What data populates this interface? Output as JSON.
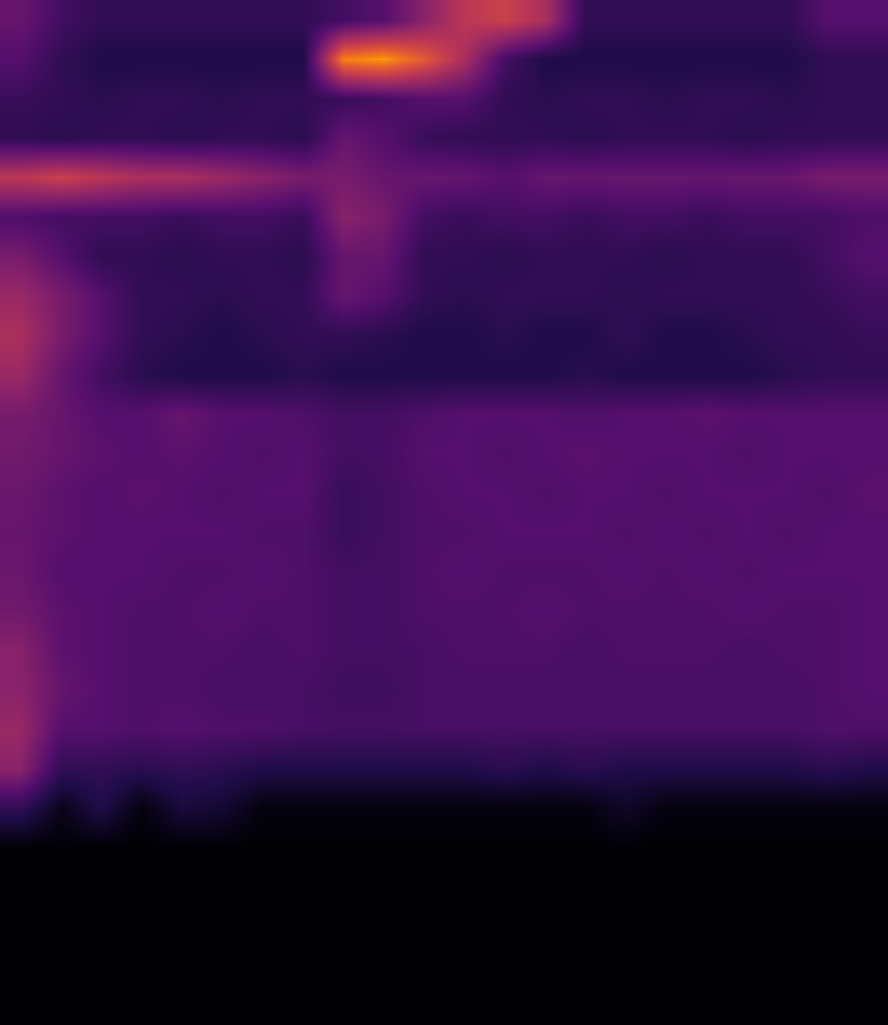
{
  "chart_data": {
    "type": "heatmap",
    "tick_labels": false,
    "grid": false,
    "xlim": [
      0,
      22
    ],
    "ylim": [
      26,
      0
    ],
    "zlim": [
      0,
      1
    ],
    "z": [
      [
        0.35,
        0.25,
        0.2,
        0.2,
        0.2,
        0.2,
        0.2,
        0.2,
        0.25,
        0.3,
        0.45,
        0.6,
        0.65,
        0.55,
        0.2,
        0.2,
        0.2,
        0.2,
        0.2,
        0.2,
        0.3,
        0.3
      ],
      [
        0.3,
        0.2,
        0.15,
        0.15,
        0.15,
        0.15,
        0.15,
        0.15,
        0.85,
        0.9,
        0.75,
        0.55,
        0.25,
        0.15,
        0.15,
        0.15,
        0.15,
        0.15,
        0.15,
        0.15,
        0.2,
        0.2
      ],
      [
        0.22,
        0.2,
        0.18,
        0.2,
        0.2,
        0.18,
        0.2,
        0.2,
        0.22,
        0.25,
        0.3,
        0.3,
        0.2,
        0.18,
        0.2,
        0.2,
        0.18,
        0.2,
        0.2,
        0.18,
        0.2,
        0.2
      ],
      [
        0.2,
        0.18,
        0.2,
        0.2,
        0.18,
        0.2,
        0.2,
        0.18,
        0.35,
        0.3,
        0.22,
        0.2,
        0.2,
        0.2,
        0.18,
        0.2,
        0.2,
        0.2,
        0.18,
        0.2,
        0.2,
        0.2
      ],
      [
        0.6,
        0.65,
        0.6,
        0.55,
        0.55,
        0.5,
        0.45,
        0.4,
        0.4,
        0.35,
        0.35,
        0.35,
        0.3,
        0.35,
        0.35,
        0.35,
        0.35,
        0.35,
        0.35,
        0.35,
        0.4,
        0.4
      ],
      [
        0.28,
        0.25,
        0.25,
        0.25,
        0.22,
        0.25,
        0.25,
        0.22,
        0.45,
        0.4,
        0.25,
        0.22,
        0.25,
        0.25,
        0.22,
        0.25,
        0.25,
        0.22,
        0.25,
        0.25,
        0.25,
        0.28
      ],
      [
        0.4,
        0.3,
        0.2,
        0.2,
        0.18,
        0.2,
        0.2,
        0.18,
        0.35,
        0.35,
        0.2,
        0.2,
        0.18,
        0.2,
        0.2,
        0.2,
        0.18,
        0.2,
        0.2,
        0.2,
        0.25,
        0.3
      ],
      [
        0.5,
        0.4,
        0.3,
        0.2,
        0.2,
        0.18,
        0.2,
        0.2,
        0.35,
        0.3,
        0.2,
        0.18,
        0.2,
        0.2,
        0.2,
        0.18,
        0.2,
        0.2,
        0.2,
        0.2,
        0.22,
        0.25
      ],
      [
        0.55,
        0.4,
        0.3,
        0.2,
        0.18,
        0.15,
        0.18,
        0.2,
        0.2,
        0.18,
        0.15,
        0.15,
        0.18,
        0.15,
        0.15,
        0.2,
        0.15,
        0.15,
        0.18,
        0.2,
        0.2,
        0.22
      ],
      [
        0.5,
        0.35,
        0.25,
        0.18,
        0.15,
        0.15,
        0.15,
        0.18,
        0.15,
        0.15,
        0.15,
        0.15,
        0.15,
        0.15,
        0.18,
        0.15,
        0.15,
        0.15,
        0.15,
        0.18,
        0.2,
        0.2
      ],
      [
        0.4,
        0.35,
        0.3,
        0.3,
        0.35,
        0.3,
        0.3,
        0.28,
        0.25,
        0.25,
        0.28,
        0.3,
        0.3,
        0.3,
        0.28,
        0.3,
        0.3,
        0.32,
        0.3,
        0.3,
        0.3,
        0.3
      ],
      [
        0.38,
        0.35,
        0.32,
        0.3,
        0.32,
        0.3,
        0.28,
        0.3,
        0.25,
        0.25,
        0.3,
        0.3,
        0.28,
        0.3,
        0.32,
        0.3,
        0.3,
        0.3,
        0.28,
        0.3,
        0.3,
        0.3
      ],
      [
        0.36,
        0.32,
        0.3,
        0.32,
        0.3,
        0.28,
        0.3,
        0.3,
        0.22,
        0.25,
        0.28,
        0.3,
        0.3,
        0.28,
        0.3,
        0.3,
        0.28,
        0.3,
        0.3,
        0.3,
        0.28,
        0.32
      ],
      [
        0.35,
        0.32,
        0.3,
        0.3,
        0.3,
        0.3,
        0.28,
        0.28,
        0.22,
        0.25,
        0.28,
        0.28,
        0.3,
        0.3,
        0.3,
        0.28,
        0.3,
        0.28,
        0.3,
        0.28,
        0.3,
        0.3
      ],
      [
        0.36,
        0.3,
        0.3,
        0.3,
        0.28,
        0.28,
        0.3,
        0.28,
        0.25,
        0.25,
        0.28,
        0.3,
        0.28,
        0.28,
        0.28,
        0.3,
        0.28,
        0.3,
        0.28,
        0.3,
        0.3,
        0.3
      ],
      [
        0.38,
        0.32,
        0.3,
        0.28,
        0.28,
        0.3,
        0.28,
        0.28,
        0.25,
        0.25,
        0.28,
        0.28,
        0.28,
        0.3,
        0.28,
        0.28,
        0.28,
        0.28,
        0.3,
        0.28,
        0.28,
        0.3
      ],
      [
        0.45,
        0.32,
        0.3,
        0.28,
        0.28,
        0.28,
        0.26,
        0.28,
        0.25,
        0.25,
        0.26,
        0.28,
        0.28,
        0.28,
        0.26,
        0.28,
        0.28,
        0.28,
        0.26,
        0.28,
        0.28,
        0.3
      ],
      [
        0.45,
        0.35,
        0.3,
        0.28,
        0.28,
        0.26,
        0.26,
        0.26,
        0.24,
        0.24,
        0.26,
        0.26,
        0.26,
        0.26,
        0.26,
        0.26,
        0.26,
        0.26,
        0.26,
        0.26,
        0.28,
        0.3
      ],
      [
        0.5,
        0.3,
        0.3,
        0.28,
        0.3,
        0.28,
        0.28,
        0.26,
        0.25,
        0.25,
        0.26,
        0.26,
        0.26,
        0.26,
        0.26,
        0.26,
        0.26,
        0.26,
        0.26,
        0.26,
        0.28,
        0.28
      ],
      [
        0.45,
        0.2,
        0.2,
        0.18,
        0.2,
        0.18,
        0.15,
        0.15,
        0.15,
        0.15,
        0.15,
        0.15,
        0.18,
        0.15,
        0.18,
        0.15,
        0.15,
        0.15,
        0.15,
        0.15,
        0.18,
        0.15
      ],
      [
        0.2,
        0.05,
        0.15,
        0.02,
        0.12,
        0.1,
        0.02,
        0.02,
        0.02,
        0.02,
        0.02,
        0.02,
        0.02,
        0.02,
        0.02,
        0.08,
        0.02,
        0.02,
        0.02,
        0.02,
        0.02,
        0.02
      ],
      [
        0,
        0,
        0,
        0,
        0,
        0,
        0,
        0,
        0,
        0,
        0,
        0,
        0,
        0,
        0,
        0,
        0,
        0,
        0,
        0,
        0,
        0
      ],
      [
        0,
        0,
        0,
        0,
        0,
        0,
        0,
        0,
        0,
        0,
        0,
        0,
        0,
        0,
        0,
        0,
        0,
        0,
        0,
        0,
        0,
        0
      ],
      [
        0,
        0,
        0,
        0,
        0,
        0,
        0,
        0,
        0,
        0,
        0,
        0,
        0,
        0,
        0,
        0,
        0,
        0,
        0,
        0,
        0,
        0
      ],
      [
        0,
        0,
        0,
        0,
        0,
        0,
        0,
        0,
        0,
        0,
        0,
        0,
        0,
        0,
        0,
        0,
        0,
        0,
        0,
        0,
        0,
        0
      ],
      [
        0,
        0,
        0,
        0,
        0,
        0,
        0,
        0,
        0,
        0,
        0,
        0,
        0,
        0,
        0,
        0,
        0,
        0,
        0,
        0,
        0,
        0
      ]
    ]
  }
}
